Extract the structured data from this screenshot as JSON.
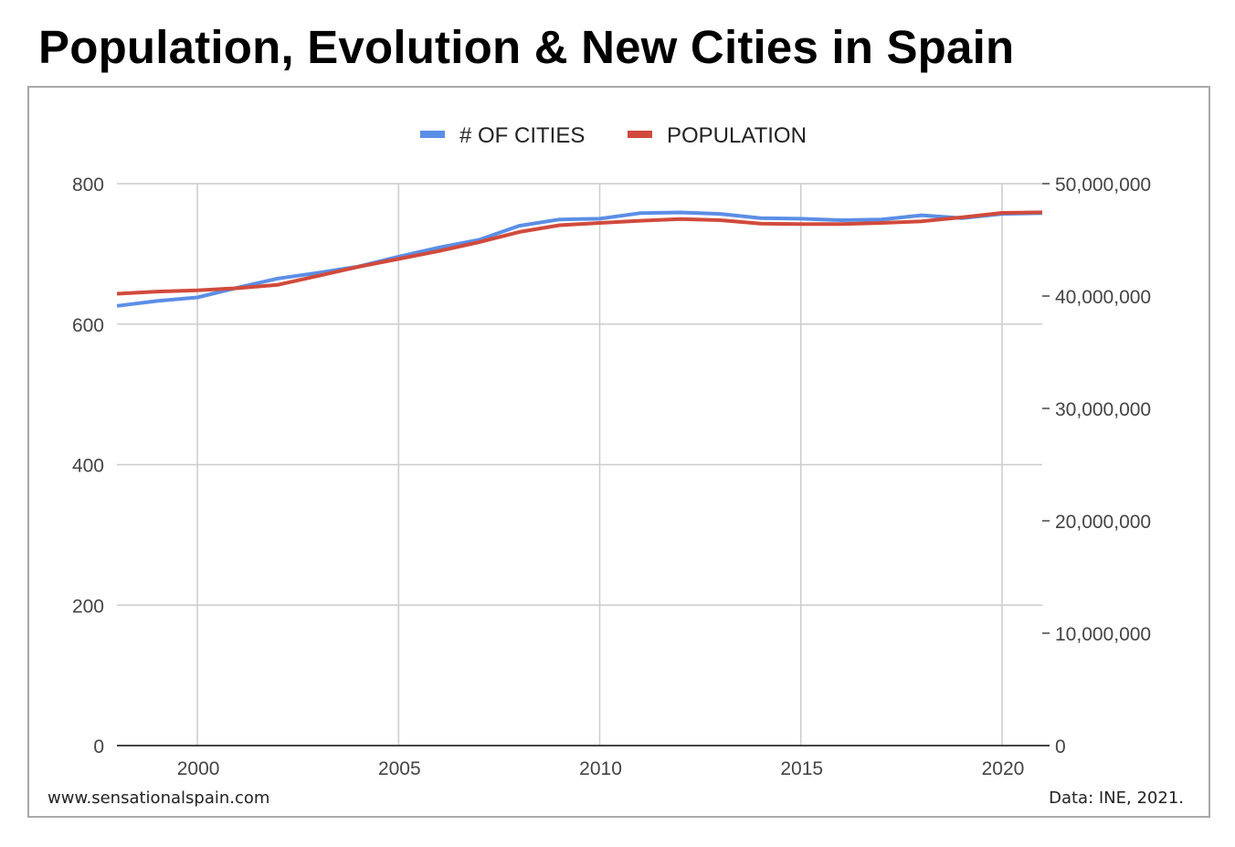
{
  "title": "Population, Evolution & New Cities in Spain",
  "footer": {
    "website": "www.sensationalspain.com",
    "source": "Data: INE, 2021."
  },
  "colors": {
    "cities": "#5b8ee6",
    "population": "#d14a3c",
    "grid": "#cccccc",
    "frame": "#a8a8a8"
  },
  "chart_data": {
    "type": "line",
    "title": "Population, Evolution & New Cities in Spain",
    "x_ticks": [
      2000,
      2005,
      2010,
      2015,
      2020
    ],
    "x_tick_labels": [
      "2000",
      "2005",
      "2010",
      "2015",
      "2020"
    ],
    "xlim": [
      1998,
      2021
    ],
    "left_axis": {
      "ylim": [
        0,
        800
      ],
      "ticks": [
        0,
        200,
        400,
        600,
        800
      ],
      "tick_labels": [
        "0",
        "200",
        "400",
        "600",
        "800"
      ]
    },
    "right_axis": {
      "ylim": [
        0,
        50000000
      ],
      "ticks": [
        0,
        10000000,
        20000000,
        30000000,
        40000000,
        50000000
      ],
      "tick_labels": [
        "0",
        "10,000,000",
        "20,000,000",
        "30,000,000",
        "40,000,000",
        "50,000,000"
      ]
    },
    "legend_position": "top-center",
    "x": [
      1998,
      1999,
      2000,
      2001,
      2002,
      2003,
      2004,
      2005,
      2006,
      2007,
      2008,
      2009,
      2010,
      2011,
      2012,
      2013,
      2014,
      2015,
      2016,
      2017,
      2018,
      2019,
      2020,
      2021
    ],
    "series": [
      {
        "name": "# OF CITIES",
        "axis": "left",
        "color": "#5b8ee6",
        "values": [
          626,
          633,
          638,
          652,
          665,
          673,
          682,
          696,
          709,
          720,
          740,
          749,
          750,
          758,
          759,
          757,
          751,
          750,
          748,
          749,
          755,
          751,
          757,
          758
        ]
      },
      {
        "name": "POPULATION",
        "axis": "right",
        "color": "#d14a3c",
        "values": [
          40200000,
          40400000,
          40500000,
          40700000,
          41000000,
          41800000,
          42600000,
          43300000,
          44000000,
          44800000,
          45700000,
          46300000,
          46500000,
          46700000,
          46850000,
          46750000,
          46450000,
          46400000,
          46400000,
          46500000,
          46650000,
          47000000,
          47400000,
          47450000
        ]
      }
    ]
  }
}
